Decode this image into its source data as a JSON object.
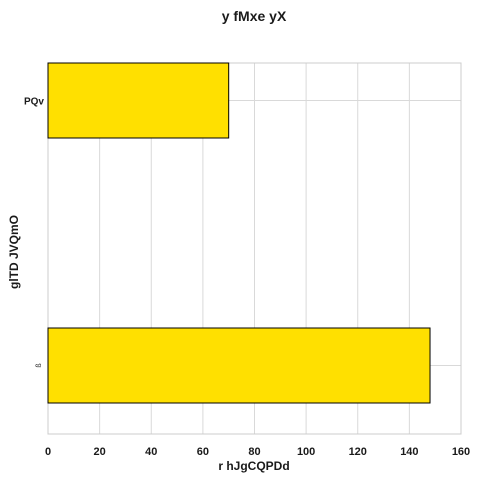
{
  "chart_data": {
    "type": "bar",
    "orientation": "horizontal",
    "title": "y fMxe yX",
    "xlabel": "r hJgCQPDd",
    "ylabel": "glTD JVQmO",
    "categories": [
      "PQv",
      "ß"
    ],
    "values": [
      70,
      148
    ],
    "xlim": [
      0,
      160
    ],
    "xticks": [
      0,
      20,
      40,
      60,
      80,
      100,
      120,
      140,
      160
    ],
    "grid": true,
    "bar_color": "#ffe000",
    "bar_edge_color": "#000000"
  }
}
